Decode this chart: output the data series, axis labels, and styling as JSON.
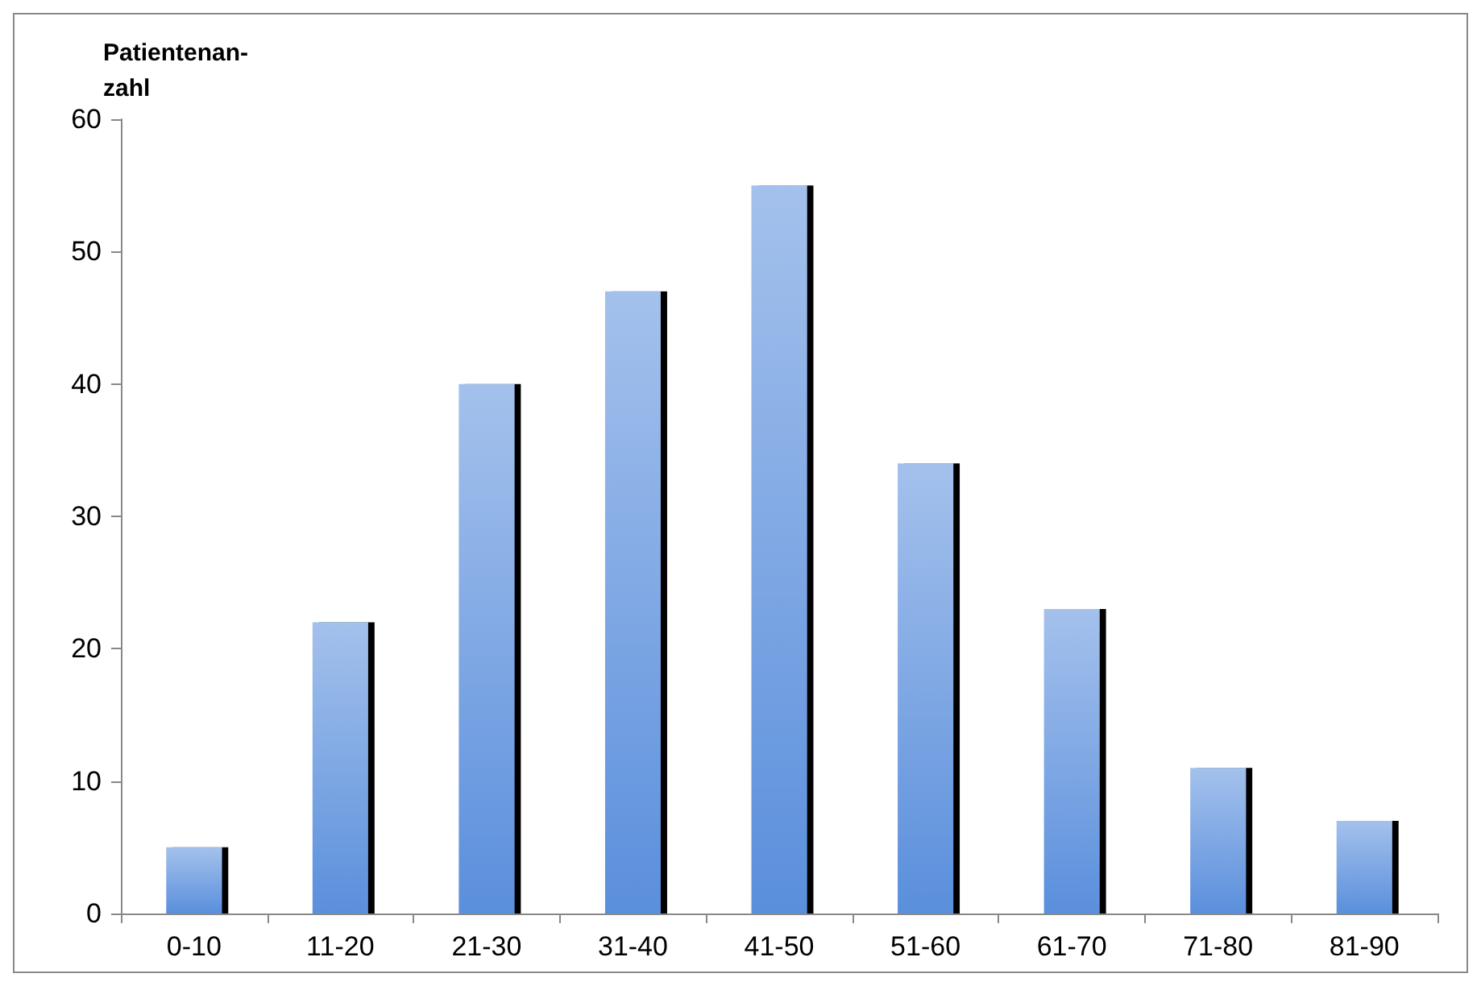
{
  "chart_data": {
    "type": "bar",
    "ylabel": "Patientenan-\nzahl",
    "categories": [
      "0-10",
      "11-20",
      "21-30",
      "31-40",
      "41-50",
      "51-60",
      "61-70",
      "71-80",
      "81-90"
    ],
    "values": [
      5,
      22,
      40,
      47,
      55,
      34,
      23,
      11,
      7
    ],
    "color": "#5a8fdc",
    "ylim": [
      0,
      60
    ],
    "yticks": [
      0,
      10,
      20,
      30,
      40,
      50,
      60
    ],
    "grid": false
  }
}
